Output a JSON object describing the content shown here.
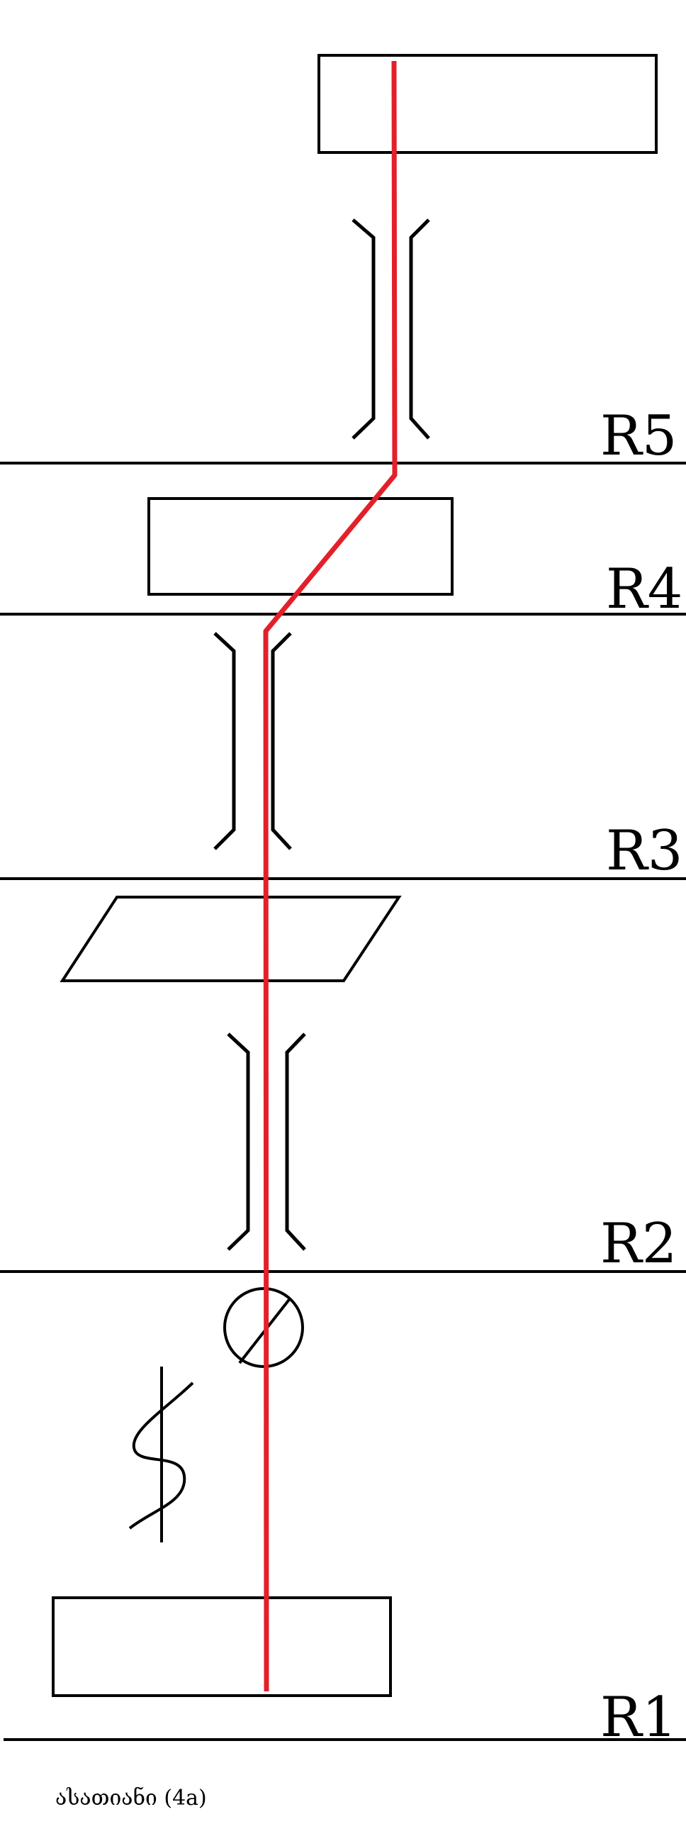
{
  "levels": {
    "r1": "R1",
    "r2": "R2",
    "r3": "R3",
    "r4": "R4",
    "r5": "R5"
  },
  "caption": "ასათიანი (4a)",
  "colors": {
    "line": "#000000",
    "ray": "#e3202a",
    "background": "#ffffff"
  },
  "icons": [
    "lamp-icon",
    "source-coil-icon"
  ]
}
